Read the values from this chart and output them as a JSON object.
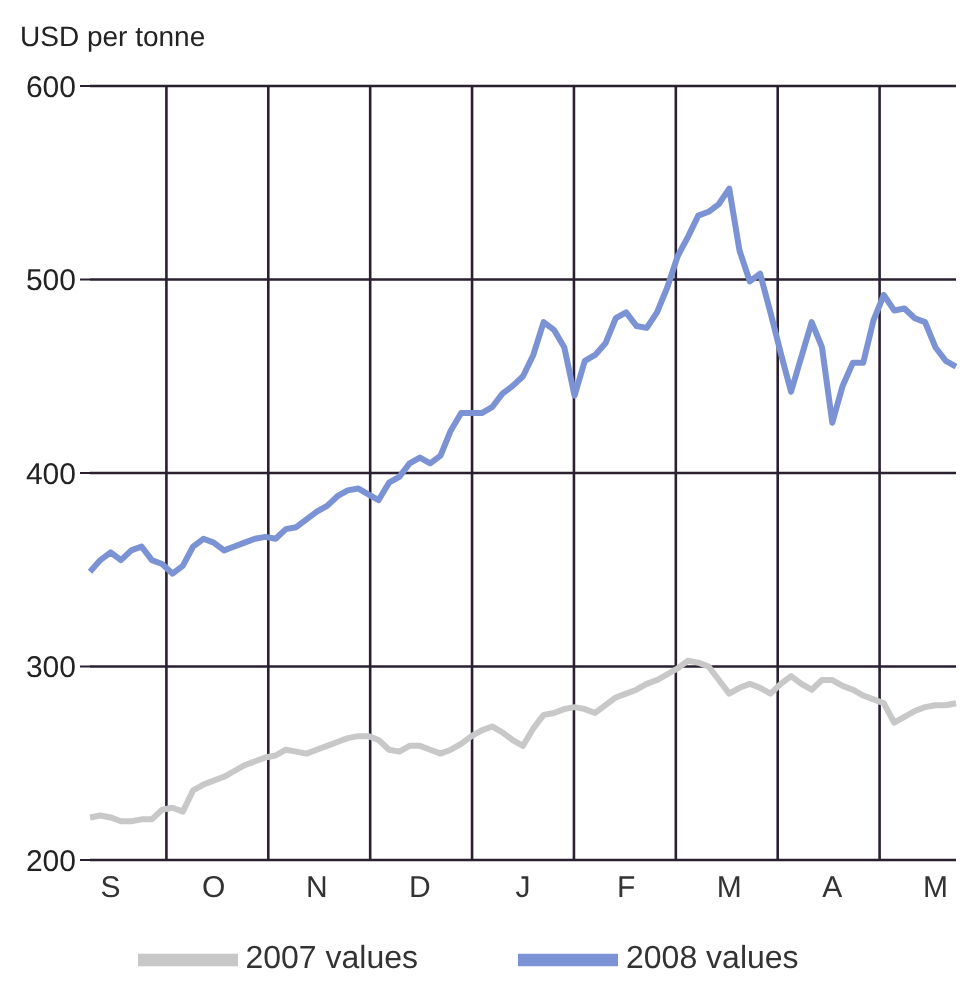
{
  "chart_data": {
    "type": "line",
    "ylabel": "USD per tonne",
    "ylim": [
      200,
      600
    ],
    "yticks": [
      200,
      300,
      400,
      500,
      600
    ],
    "categories": [
      null,
      null,
      "S",
      null,
      null,
      null,
      null,
      null,
      null,
      null,
      null,
      null,
      "O",
      null,
      null,
      null,
      null,
      null,
      null,
      null,
      null,
      null,
      "N",
      null,
      null,
      null,
      null,
      null,
      null,
      null,
      null,
      null,
      "D",
      null,
      null,
      null,
      null,
      null,
      null,
      null,
      null,
      null,
      "J",
      null,
      null,
      null,
      null,
      null,
      null,
      null,
      null,
      null,
      "F",
      null,
      null,
      null,
      null,
      null,
      null,
      null,
      null,
      null,
      "M",
      null,
      null,
      null,
      null,
      null,
      null,
      null,
      null,
      null,
      "A",
      null,
      null,
      null,
      null,
      null,
      null,
      null,
      null,
      null,
      "M",
      null,
      null
    ],
    "grid": true,
    "legend": "bottom",
    "marker": "none",
    "line_style": "solid",
    "series": [
      {
        "name": "2007 values",
        "color": "#c8c8c8",
        "values": [
          222,
          223,
          222,
          220,
          220,
          221,
          221,
          226,
          227,
          225,
          236,
          239,
          241,
          243,
          246,
          249,
          251,
          253,
          254,
          257,
          256,
          255,
          257,
          259,
          261,
          263,
          264,
          264,
          262,
          257,
          256,
          259,
          259,
          257,
          255,
          257,
          260,
          264,
          267,
          269,
          266,
          262,
          259,
          268,
          275,
          276,
          278,
          279,
          278,
          276,
          280,
          284,
          286,
          288,
          291,
          293,
          296,
          299,
          303,
          302,
          300,
          293,
          286,
          289,
          291,
          289,
          286,
          291,
          295,
          291,
          288,
          293,
          293,
          290,
          288,
          285,
          283,
          281,
          271,
          274,
          277,
          279,
          280,
          280,
          281
        ]
      },
      {
        "name": "2008 values",
        "color": "#7b93d4",
        "values": [
          349,
          355,
          359,
          355,
          360,
          362,
          355,
          353,
          348,
          352,
          362,
          366,
          364,
          360,
          362,
          364,
          366,
          367,
          366,
          371,
          372,
          376,
          380,
          383,
          388,
          391,
          392,
          389,
          386,
          395,
          398,
          405,
          408,
          405,
          409,
          422,
          431,
          431,
          431,
          434,
          441,
          445,
          450,
          461,
          478,
          474,
          465,
          440,
          458,
          461,
          467,
          480,
          483,
          476,
          475,
          483,
          496,
          512,
          522,
          533,
          535,
          539,
          547,
          515,
          499,
          503,
          483,
          462,
          442,
          460,
          478,
          465,
          426,
          445,
          457,
          457,
          479,
          492,
          484,
          485,
          480,
          478,
          465,
          458,
          455
        ]
      }
    ]
  }
}
